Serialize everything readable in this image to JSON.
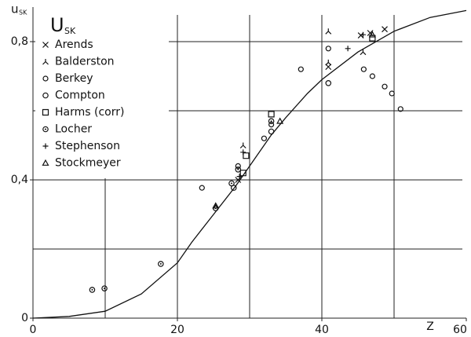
{
  "chart_data": {
    "type": "scatter",
    "y_label": "u",
    "y_label_sub": "SK",
    "x_label": "Z",
    "legend_title": "U",
    "legend_title_sub": "SK",
    "legend": "top-left",
    "color": "#111111",
    "xlim": [
      0,
      60
    ],
    "ylim": [
      0,
      0.9
    ],
    "xticks": [
      0,
      20,
      40,
      60
    ],
    "yticks": [
      0,
      {
        "value": 0.4,
        "label": "0,4"
      },
      {
        "value": 0.8,
        "label": "0,8"
      }
    ],
    "xgrid": [
      10,
      20,
      30,
      40,
      50
    ],
    "ygrid": [
      0.2,
      0.4,
      0.6,
      0.8
    ],
    "curve": {
      "x": [
        0,
        5,
        10,
        15,
        20,
        22,
        25,
        28,
        30,
        33,
        35,
        38,
        40,
        45,
        50,
        55,
        60
      ],
      "y": [
        0,
        0.005,
        0.02,
        0.07,
        0.16,
        0.22,
        0.3,
        0.38,
        0.44,
        0.53,
        0.58,
        0.65,
        0.69,
        0.77,
        0.83,
        0.87,
        0.89
      ]
    },
    "series": [
      {
        "name": "Arends",
        "marker": "cross",
        "x": [
          40.9,
          45.4,
          46.7,
          48.7,
          28.4
        ],
        "y": [
          0.727,
          0.818,
          0.825,
          0.836,
          0.4
        ]
      },
      {
        "name": "Balderston",
        "marker": "lambda",
        "x": [
          40.9,
          40.9,
          45.7,
          29.1,
          25.3
        ],
        "y": [
          0.83,
          0.74,
          0.77,
          0.5,
          0.325
        ]
      },
      {
        "name": "Berkey",
        "marker": "circle",
        "x": [
          37.1,
          40.9,
          45.8,
          47,
          48.7,
          49.7,
          50.9,
          23.4,
          28.4,
          33,
          32
        ],
        "y": [
          0.72,
          0.78,
          0.72,
          0.7,
          0.67,
          0.65,
          0.605,
          0.377,
          0.44,
          0.56,
          0.52
        ]
      },
      {
        "name": "Compton",
        "marker": "dot",
        "x": [
          40.9,
          27.8,
          33
        ],
        "y": [
          0.68,
          0.377,
          0.54
        ]
      },
      {
        "name": "Harms (corr)",
        "marker": "square",
        "x": [
          33,
          29.5,
          47,
          29.1
        ],
        "y": [
          0.59,
          0.47,
          0.81,
          0.42
        ]
      },
      {
        "name": "Locher",
        "marker": "ring",
        "x": [
          8.2,
          9.9,
          17.7,
          25.3,
          27.5,
          28.4,
          33
        ],
        "y": [
          0.082,
          0.086,
          0.157,
          0.318,
          0.39,
          0.43,
          0.57
        ]
      },
      {
        "name": "Stephenson",
        "marker": "plus",
        "x": [
          43.6,
          45.7,
          29.1,
          28.6
        ],
        "y": [
          0.78,
          0.82,
          0.48,
          0.41
        ]
      },
      {
        "name": "Stockmeyer",
        "marker": "triangle",
        "x": [
          34.2,
          25.3,
          47
        ],
        "y": [
          0.57,
          0.325,
          0.82
        ]
      }
    ]
  }
}
